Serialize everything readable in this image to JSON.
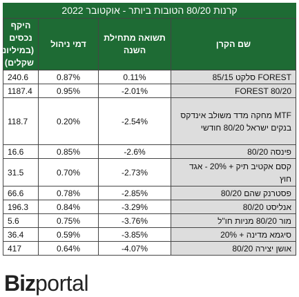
{
  "chart_data": {
    "type": "table",
    "title": "קרנות 80/20 הטובות ביותר - אוקטובר 2022",
    "columns": [
      "שם הקרן",
      "תשואה מתחילת השנה",
      "דמי ניהול",
      "היקף נכסים (במיליוני שקלים)"
    ],
    "rows": [
      {
        "name": "FOREST סלקט 85/15",
        "ytd_return": "0.11%",
        "fee": "0.87%",
        "aum": "240.6"
      },
      {
        "name": "FOREST 80/20",
        "ytd_return": "-2.01%",
        "fee": "0.95%",
        "aum": "1187.4"
      },
      {
        "name": "MTF מחקה מדד משולב אינדקס בנקים ישראל 80/20 חודשי",
        "ytd_return": "-2.54%",
        "fee": "0.20%",
        "aum": "118.7"
      },
      {
        "name": "פינסה 80/20",
        "ytd_return": "-2.6%",
        "fee": "0.85%",
        "aum": "16.6"
      },
      {
        "name": "קסם אקטיב תיק + 20% - אגד חוץ",
        "ytd_return": "-2.73%",
        "fee": "0.70%",
        "aum": "31.5"
      },
      {
        "name": "פסטרנק שהם 80/20",
        "ytd_return": "-2.85%",
        "fee": "0.78%",
        "aum": "66.6"
      },
      {
        "name": "אנליסט 80/20",
        "ytd_return": "-3.29%",
        "fee": "0.84%",
        "aum": "196.3"
      },
      {
        "name": "מור 80/20 מניות חו\"ל",
        "ytd_return": "-3.76%",
        "fee": "0.75%",
        "aum": "5.6"
      },
      {
        "name": "סיגמא מדינה + 20%",
        "ytd_return": "-3.85%",
        "fee": "0.59%",
        "aum": "36.4"
      },
      {
        "name": "אושן יצירה 80/20",
        "ytd_return": "-4.07%",
        "fee": "0.64%",
        "aum": "417"
      }
    ]
  },
  "logo": {
    "biz": "Biz",
    "portal": "portal"
  },
  "colors": {
    "header_bg": "#1e6b34",
    "name_cell_bg": "#dddddd"
  }
}
